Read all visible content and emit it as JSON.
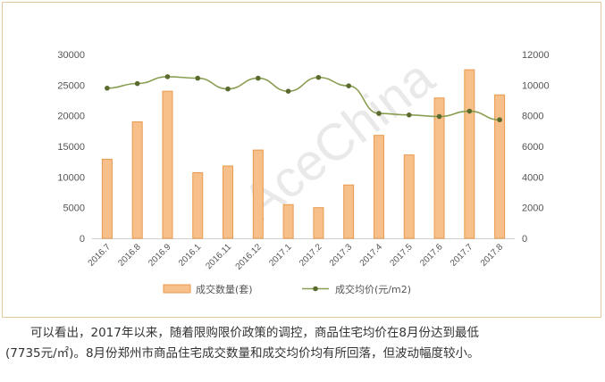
{
  "chart_data": {
    "type": "bar+line",
    "categories": [
      "2016.7",
      "2016.8",
      "2016.9",
      "2016.1",
      "2016.11",
      "2016.12",
      "2017.1",
      "2017.2",
      "2017.3",
      "2017.4",
      "2017.5",
      "2017.6",
      "2017.7",
      "2017.8"
    ],
    "series": [
      {
        "name": "成交数量(套)",
        "type": "bar",
        "axis": "left",
        "color": "#f7c08a",
        "values": [
          12900,
          19000,
          24000,
          10700,
          11800,
          14400,
          5500,
          5000,
          8700,
          16800,
          13600,
          22900,
          27500,
          23400
        ]
      },
      {
        "name": "成交均价(元/m2)",
        "type": "line",
        "axis": "right",
        "color": "#8a9e52",
        "values": [
          9800,
          10100,
          10550,
          10450,
          9750,
          10450,
          9600,
          10500,
          9950,
          8150,
          8050,
          7950,
          8300,
          7735
        ]
      }
    ],
    "y_left": {
      "min": 0,
      "max": 30000,
      "ticks": [
        "0",
        "5000",
        "10000",
        "15000",
        "20000",
        "25000",
        "30000"
      ]
    },
    "y_right": {
      "min": 0,
      "max": 12000,
      "ticks": [
        "0",
        "2000",
        "4000",
        "6000",
        "8000",
        "10000",
        "12000"
      ]
    },
    "grid": false,
    "legend_position": "bottom",
    "watermark": "AceChina"
  },
  "caption": {
    "line1": "可以看出，2017年以来，随着限购限价政策的调控，商品住宅均价在8月份达到最低",
    "line2": "(7735元/㎡)。8月份郑州市商品住宅成交数量和成交均价均有所回落，但波动幅度较小。"
  }
}
